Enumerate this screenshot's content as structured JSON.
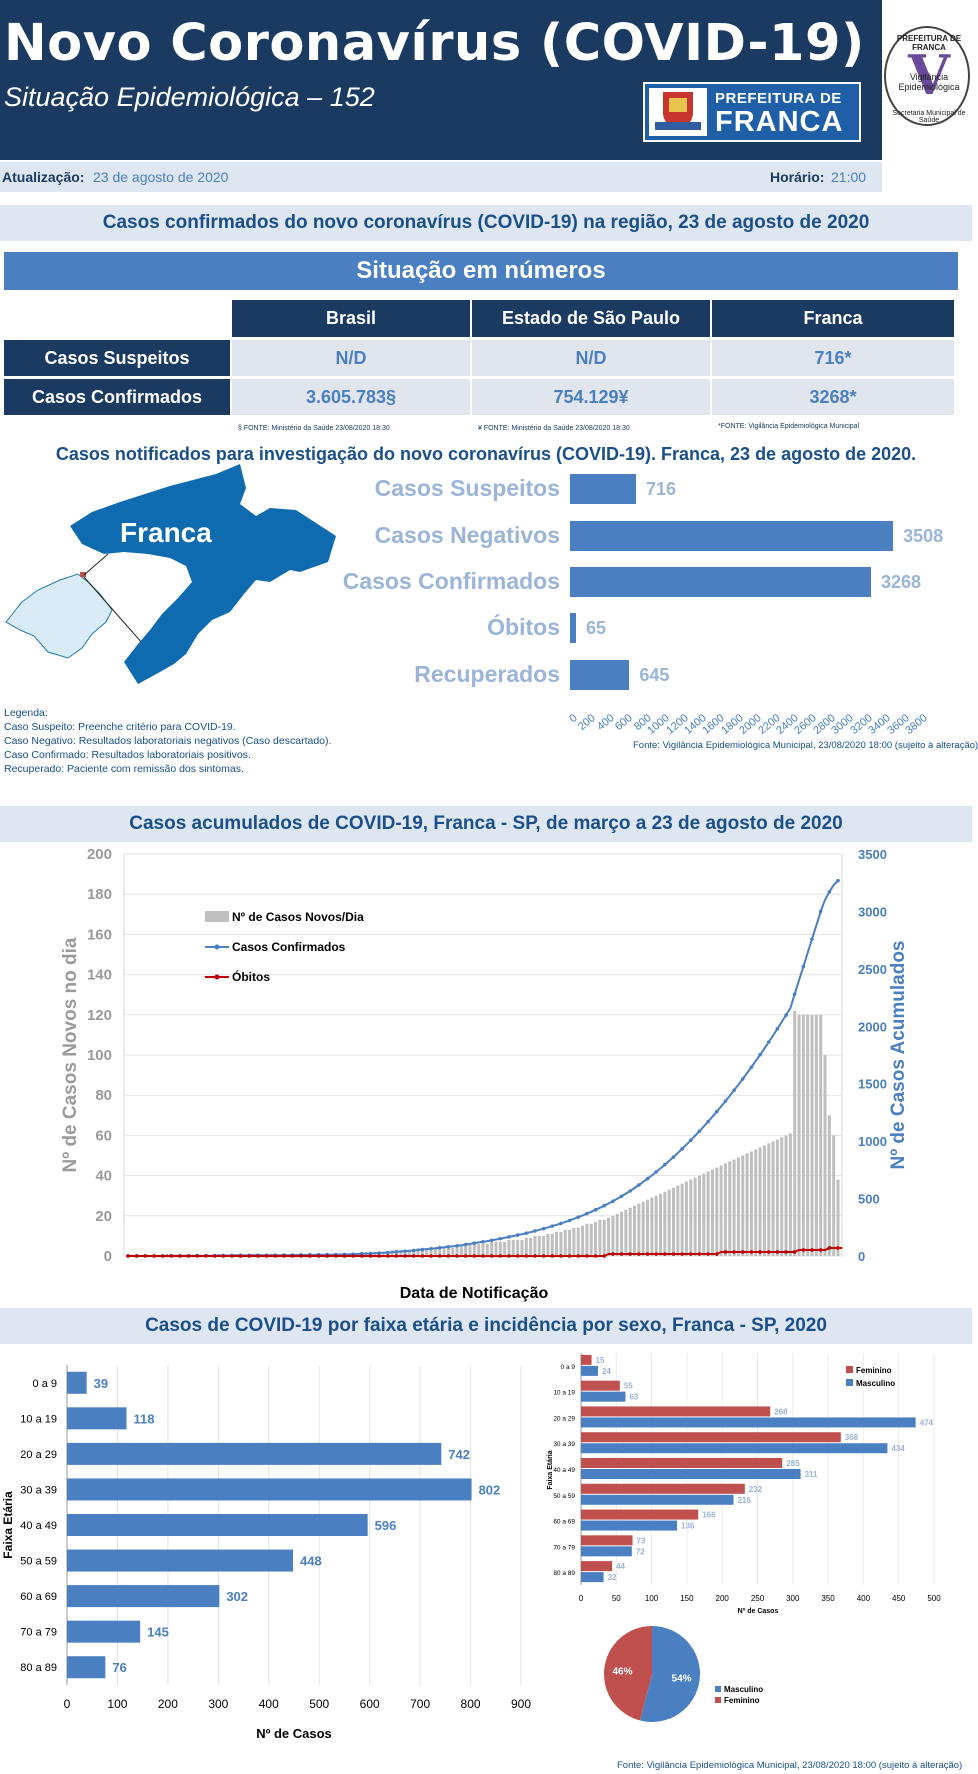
{
  "header": {
    "title": "Novo Coronavírus (COVID-19)",
    "subtitle": "Situação Epidemiológica – 152",
    "logo_line1": "PREFEITURA DE",
    "logo_line2": "FRANCA",
    "seal_top": "PREFEITURA DE FRANCA",
    "seal_mid": "Vigilância Epidemiológica",
    "seal_bottom": "Secretaria Municipal de Saúde"
  },
  "update": {
    "date_label": "Atualização:",
    "date_value": "23 de agosto de 2020",
    "time_label": "Horário:",
    "time_value": "21:00"
  },
  "section1": {
    "title": "Casos confirmados do novo coronavírus (COVID-19) na região, 23 de agosto de 2020",
    "band": "Situação em números"
  },
  "table": {
    "columns": [
      "Brasil",
      "Estado de São Paulo",
      "Franca"
    ],
    "rows": [
      {
        "label": "Casos Suspeitos",
        "values": [
          "N/D",
          "N/D",
          "716*"
        ]
      },
      {
        "label": "Casos Confirmados",
        "values": [
          "3.605.783§",
          "754.129¥",
          "3268*"
        ]
      }
    ],
    "notes": [
      "§ FONTE: Ministério da Saúde 23/08/2020 18:30",
      "¥ FONTE: Ministério da Saúde 23/08/2020 18:30",
      "*FONTE: Vigilância Epidemiológica Municipal"
    ]
  },
  "notif": {
    "title": "Casos notificados para investigação do novo coronavírus (COVID-19). Franca, 23 de agosto de 2020.",
    "map_label": "Franca",
    "legend_title": "Legenda:",
    "legend_lines": [
      "Caso Suspeito: Preenche critério para COVID-19.",
      "Caso Negativo: Resultados laboratoriais negativos (Caso descartado).",
      "Caso Confirmado: Resultados laboratoriais positivos.",
      "Recuperado: Paciente com remissão dos sintomas."
    ],
    "source": "Fonte: Vigilância Epidemiológica Municipal, 23/08/2020 18:00  (sujeito à alteração)"
  },
  "colors": {
    "navy": "#1a3a62",
    "blue": "#4a7fc1",
    "light": "#dde6f1",
    "red": "#c0504d",
    "gray": "#bfbfbf"
  },
  "section2": {
    "title": "Casos acumulados de COVID-19, Franca - SP, de março a 23 de agosto de 2020"
  },
  "section3": {
    "title": "Casos de COVID-19 por faixa etária e incidência por sexo, Franca - SP, 2020"
  },
  "chart_data": [
    {
      "type": "bar",
      "orientation": "horizontal",
      "categories": [
        "Casos Suspeitos",
        "Casos Negativos",
        "Casos Confirmados",
        "Óbitos",
        "Recuperados"
      ],
      "values": [
        716,
        3508,
        3268,
        65,
        645
      ],
      "xlim": [
        0,
        3800
      ],
      "xticks": [
        0,
        200,
        400,
        600,
        800,
        1000,
        1200,
        1400,
        1600,
        1800,
        2000,
        2200,
        2400,
        2600,
        2800,
        3000,
        3200,
        3400,
        3600,
        3800
      ]
    },
    {
      "type": "bar+line",
      "xlabel": "Data de Notificação",
      "ylabel": "Nº de Casos Novos no dia",
      "y2label": "Nº de Casos Acumulados",
      "ylim": [
        0,
        200
      ],
      "y2lim": [
        0,
        3500
      ],
      "yticks": [
        0,
        20,
        40,
        60,
        80,
        100,
        120,
        140,
        160,
        180,
        200
      ],
      "y2ticks": [
        0,
        500,
        1000,
        1500,
        2000,
        2500,
        3000,
        3500
      ],
      "legend": [
        "Nº de Casos Novos/Dia",
        "Casos Confirmados",
        "Óbitos"
      ],
      "legend_position": "top-left",
      "days": 165,
      "series": [
        {
          "name": "Casos Confirmados",
          "axis": "right",
          "values": [
            1,
            1,
            1,
            1,
            1,
            1,
            1,
            1,
            1,
            2,
            2,
            2,
            2,
            2,
            2,
            2,
            3,
            3,
            3,
            3,
            3,
            4,
            4,
            4,
            4,
            5,
            5,
            5,
            5,
            6,
            6,
            6,
            6,
            7,
            7,
            7,
            8,
            8,
            8,
            9,
            9,
            9,
            10,
            10,
            11,
            11,
            11,
            12,
            12,
            13,
            14,
            15,
            16,
            17,
            19,
            21,
            22,
            24,
            26,
            28,
            30,
            33,
            36,
            39,
            42,
            45,
            48,
            52,
            56,
            60,
            64,
            68,
            72,
            76,
            80,
            84,
            89,
            94,
            100,
            106,
            112,
            118,
            124,
            130,
            137,
            144,
            151,
            158,
            166,
            174,
            182,
            190,
            199,
            208,
            218,
            228,
            238,
            249,
            260,
            272,
            284,
            297,
            310,
            324,
            338,
            353,
            369,
            385,
            402,
            420,
            438,
            457,
            477,
            498,
            520,
            543,
            567,
            592,
            618,
            645,
            673,
            702,
            732,
            763,
            795,
            828,
            862,
            897,
            933,
            970,
            1008,
            1047,
            1087,
            1128,
            1170,
            1213,
            1257,
            1302,
            1348,
            1395,
            1443,
            1492,
            1542,
            1593,
            1645,
            1698,
            1752,
            1807,
            1863,
            1920,
            1978,
            2037,
            2097,
            2158,
            2280,
            2400,
            2520,
            2640,
            2760,
            2880,
            3000,
            3100,
            3170,
            3230,
            3268
          ]
        },
        {
          "name": "Óbitos",
          "axis": "left",
          "values": [
            0,
            0,
            0,
            0,
            0,
            0,
            0,
            0,
            0,
            0,
            0,
            0,
            0,
            0,
            0,
            0,
            0,
            0,
            0,
            0,
            0,
            0,
            0,
            0,
            0,
            0,
            0,
            0,
            0,
            0,
            0,
            0,
            0,
            0,
            0,
            0,
            0,
            0,
            0,
            0,
            0,
            0,
            0,
            0,
            0,
            0,
            0,
            0,
            0,
            0,
            0,
            0,
            0,
            0,
            0,
            0,
            0,
            0,
            0,
            0,
            0,
            0,
            0,
            0,
            0,
            0,
            0,
            0,
            0,
            0,
            0,
            0,
            0,
            0,
            0,
            0,
            0,
            0,
            0,
            0,
            0,
            0,
            0,
            0,
            0,
            0,
            0,
            0,
            0,
            0,
            0,
            0,
            0,
            0,
            0,
            0,
            0,
            0,
            0,
            0,
            0,
            0,
            0,
            0,
            0,
            0,
            0,
            0,
            0,
            0,
            0,
            1,
            1,
            1,
            1,
            1,
            1,
            1,
            1,
            1,
            1,
            1,
            1,
            1,
            1,
            1,
            1,
            1,
            1,
            1,
            1,
            1,
            1,
            1,
            1,
            1,
            1,
            2,
            2,
            2,
            2,
            2,
            2,
            2,
            2,
            2,
            2,
            2,
            2,
            2,
            2,
            2,
            2,
            2,
            2,
            3,
            3,
            3,
            3,
            3,
            3,
            3,
            4,
            4,
            4,
            4
          ]
        },
        {
          "name": "Nº de Casos Novos/Dia",
          "axis": "left",
          "values": [
            1,
            0,
            0,
            0,
            0,
            0,
            0,
            0,
            0,
            1,
            0,
            0,
            0,
            0,
            0,
            0,
            1,
            0,
            0,
            0,
            0,
            1,
            0,
            0,
            0,
            1,
            0,
            0,
            0,
            1,
            0,
            0,
            0,
            1,
            0,
            0,
            1,
            0,
            0,
            1,
            0,
            0,
            1,
            0,
            1,
            0,
            0,
            1,
            0,
            1,
            1,
            1,
            1,
            1,
            2,
            2,
            1,
            2,
            2,
            2,
            2,
            3,
            3,
            3,
            3,
            3,
            3,
            4,
            4,
            4,
            4,
            4,
            4,
            4,
            4,
            4,
            5,
            5,
            6,
            6,
            6,
            6,
            6,
            6,
            7,
            7,
            7,
            7,
            8,
            8,
            8,
            8,
            9,
            9,
            10,
            10,
            10,
            11,
            11,
            12,
            12,
            13,
            13,
            14,
            14,
            15,
            16,
            16,
            17,
            18,
            18,
            19,
            20,
            21,
            22,
            23,
            24,
            25,
            26,
            27,
            28,
            29,
            30,
            31,
            32,
            33,
            34,
            35,
            36,
            37,
            38,
            39,
            40,
            41,
            42,
            43,
            44,
            45,
            46,
            47,
            48,
            49,
            50,
            51,
            52,
            53,
            54,
            55,
            56,
            57,
            58,
            59,
            60,
            61,
            122,
            120,
            120,
            120,
            120,
            120,
            120,
            100,
            70,
            60,
            38
          ]
        }
      ]
    },
    {
      "type": "bar",
      "orientation": "horizontal",
      "xlabel": "Nº de Casos",
      "ylabel": "Faixa Etária",
      "categories": [
        "0 a 9",
        "10 a 19",
        "20 a 29",
        "30 a 39",
        "40 a 49",
        "50 a 59",
        "60  a 69",
        "70 a 79",
        "80 a 89"
      ],
      "values": [
        39,
        118,
        742,
        802,
        596,
        448,
        302,
        145,
        76
      ],
      "xlim": [
        0,
        900
      ],
      "xticks": [
        0,
        100,
        200,
        300,
        400,
        500,
        600,
        700,
        800,
        900
      ]
    },
    {
      "type": "bar",
      "orientation": "horizontal",
      "xlabel": "Nº de Casos",
      "ylabel": "Faixa Etária",
      "categories": [
        "0 a 9",
        "10 a 19",
        "20 a 29",
        "30 a 39",
        "40 a 49",
        "50 a 59",
        "60 a 69",
        "70 a 79",
        "80 a 89"
      ],
      "series": [
        {
          "name": "Feminino",
          "color": "#c0504d",
          "values": [
            15,
            55,
            268,
            368,
            285,
            232,
            166,
            73,
            44
          ]
        },
        {
          "name": "Masculino",
          "color": "#4a7fc1",
          "values": [
            24,
            63,
            474,
            434,
            311,
            216,
            136,
            72,
            32
          ]
        }
      ],
      "xlim": [
        0,
        500
      ],
      "xticks": [
        0,
        50,
        100,
        150,
        200,
        250,
        300,
        350,
        400,
        450,
        500
      ],
      "legend_position": "top-right"
    },
    {
      "type": "pie",
      "slices": [
        {
          "label": "Masculino",
          "value": 54,
          "text": "54%",
          "color": "#4a7fc1"
        },
        {
          "label": "Feminino",
          "value": 46,
          "text": "46%",
          "color": "#c0504d"
        }
      ]
    }
  ],
  "age_source": "Fonte: Vigilância Epidemiológica Municipal,  23/08/2020 18:00 (sujeito à alteração)"
}
